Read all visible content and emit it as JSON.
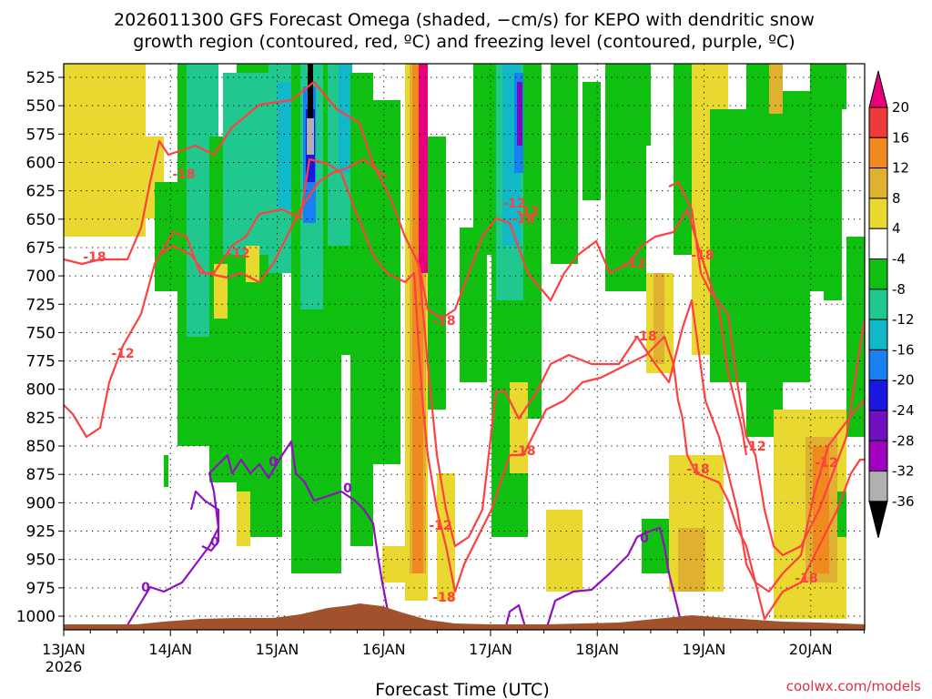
{
  "title_line1": "2026011300 GFS Forecast Omega (shaded, −cm/s) for KEPO with dendritic snow",
  "title_line2": "growth region (contoured, red, ºC) and freezing level (contoured, purple, ºC)",
  "x_axis_title": "Forecast Time (UTC)",
  "credit": "coolwx.com/models",
  "year_label": "2026",
  "chart_data": {
    "type": "heatmap",
    "x_ticks": [
      "13JAN",
      "14JAN",
      "15JAN",
      "16JAN",
      "17JAN",
      "18JAN",
      "19JAN",
      "20JAN"
    ],
    "y_ticks": [
      525,
      550,
      575,
      600,
      625,
      650,
      675,
      700,
      725,
      750,
      775,
      800,
      825,
      850,
      875,
      900,
      925,
      950,
      975,
      1000
    ],
    "y_axis": "pressure (hPa), inverted",
    "colorbar": {
      "labels": [
        "20",
        "16",
        "12",
        "8",
        "4",
        "-4",
        "-8",
        "-12",
        "-16",
        "-20",
        "-24",
        "-28",
        "-32",
        "-36"
      ],
      "colors": [
        "#e8007a",
        "#ef3a3a",
        "#f08a20",
        "#e0b030",
        "#e8d830",
        "#ffffff",
        "#10c010",
        "#20c890",
        "#10b8c8",
        "#1880f0",
        "#1818e0",
        "#7010c0",
        "#a000c0",
        "#b0b0b0",
        "#000000"
      ]
    },
    "contour_labels_red": [
      "-18",
      "-12",
      "-12",
      "-18",
      "-18",
      "-18",
      "-12",
      "-18",
      "-12",
      "-18",
      "-18",
      "-12",
      "-12",
      "-18",
      "-18",
      "-12",
      "-18",
      "-12"
    ],
    "contour_labels_purple": [
      "0",
      "0",
      "0",
      "0",
      "0"
    ],
    "series": [
      {
        "name": "-12",
        "color": "#ff4040"
      },
      {
        "name": "-18",
        "color": "#ff4040"
      },
      {
        "name": "0",
        "color": "#9010c0"
      }
    ]
  }
}
